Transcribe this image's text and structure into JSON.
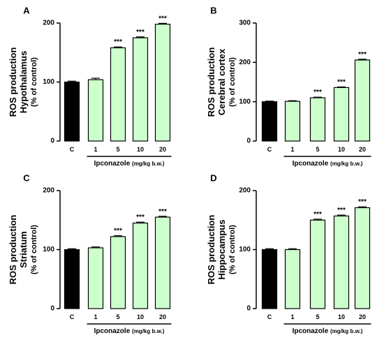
{
  "figure": {
    "colors": {
      "control": "#000000",
      "treated": "#ccffcc",
      "stroke": "#000000"
    }
  },
  "chart_data": [
    {
      "type": "bar",
      "panel": "A",
      "ylabel_line1": "ROS production",
      "ylabel_line2": "Hypothalamus",
      "ylabel_line3": "(% of control)",
      "xlabel_main": "Ipconazole",
      "xlabel_unit": "(mg/kg b.w.)",
      "categories": [
        "C",
        "1",
        "5",
        "10",
        "20"
      ],
      "values": [
        100,
        104,
        158,
        175,
        198
      ],
      "errors": [
        1.5,
        2.5,
        1.5,
        1.5,
        1.5
      ],
      "significance": [
        "",
        "",
        "***",
        "***",
        "***"
      ],
      "ylim": [
        0,
        200
      ],
      "yticks": [
        0,
        100,
        200
      ]
    },
    {
      "type": "bar",
      "panel": "B",
      "ylabel_line1": "ROS production",
      "ylabel_line2": "Cerebral cortex",
      "ylabel_line3": "(% of control)",
      "xlabel_main": "Ipconazole",
      "xlabel_unit": "(mg/kg b.w.)",
      "categories": [
        "C",
        "1",
        "5",
        "10",
        "20"
      ],
      "values": [
        100,
        101,
        110,
        136,
        206
      ],
      "errors": [
        1.5,
        1.5,
        1.5,
        1.5,
        2
      ],
      "significance": [
        "",
        "",
        "***",
        "***",
        "***"
      ],
      "ylim": [
        0,
        300
      ],
      "yticks": [
        0,
        100,
        200,
        300
      ]
    },
    {
      "type": "bar",
      "panel": "C",
      "ylabel_line1": "ROS production",
      "ylabel_line2": "Striatum",
      "ylabel_line3": "(% of control)",
      "xlabel_main": "Ipconazole",
      "xlabel_unit": "(mg/kg b.w.)",
      "categories": [
        "C",
        "1",
        "5",
        "10",
        "20"
      ],
      "values": [
        100,
        103,
        122,
        145,
        155
      ],
      "errors": [
        1.5,
        1.5,
        1.5,
        1.5,
        1.5
      ],
      "significance": [
        "",
        "",
        "***",
        "***",
        "***"
      ],
      "ylim": [
        0,
        200
      ],
      "yticks": [
        0,
        100,
        200
      ]
    },
    {
      "type": "bar",
      "panel": "D",
      "ylabel_line1": "ROS production",
      "ylabel_line2": "Hippocampus",
      "ylabel_line3": "(% of control)",
      "xlabel_main": "Ipconazole",
      "xlabel_unit": "(mg/kg b.w.)",
      "categories": [
        "C",
        "1",
        "5",
        "10",
        "20"
      ],
      "values": [
        100,
        100,
        150,
        157,
        171
      ],
      "errors": [
        1.5,
        1.5,
        1.5,
        1.5,
        1.5
      ],
      "significance": [
        "",
        "",
        "***",
        "***",
        "***"
      ],
      "ylim": [
        0,
        200
      ],
      "yticks": [
        0,
        100,
        200
      ]
    }
  ]
}
